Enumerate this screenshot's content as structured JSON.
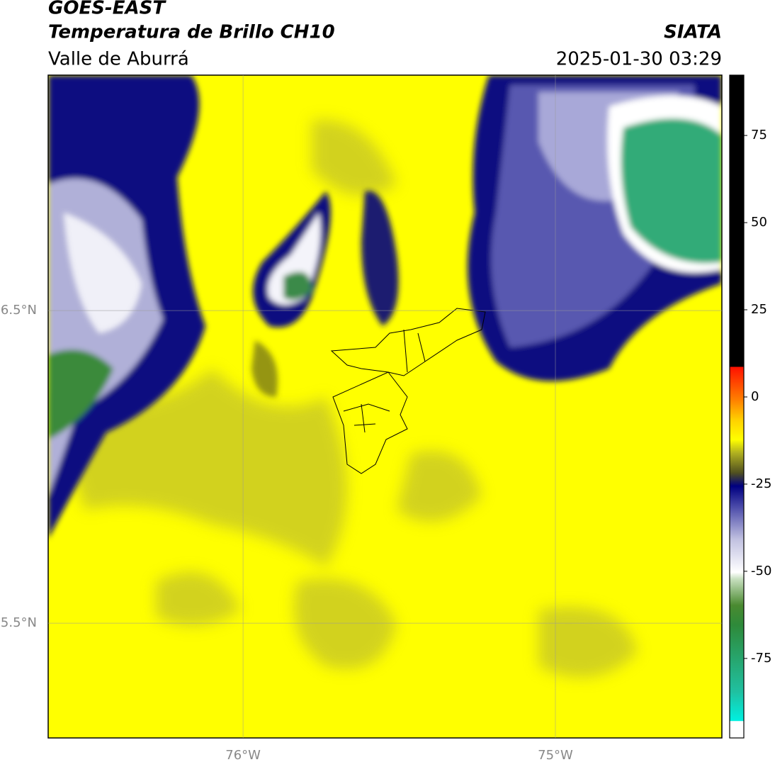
{
  "header": {
    "title": "GOES-EAST",
    "subtitle": "Temperatura de Brillo CH10",
    "region": "Valle de Aburrá",
    "source": "SIATA",
    "timestamp": "2025-01-30 03:29"
  },
  "map": {
    "xlim": [
      -76.624,
      -74.467
    ],
    "ylim": [
      5.133,
      7.253
    ],
    "xticks": [
      {
        "value": -76,
        "label": "76°W"
      },
      {
        "value": -75,
        "label": "75°W"
      }
    ],
    "yticks": [
      {
        "value": 6.5,
        "label": "6.5°N"
      },
      {
        "value": 5.5,
        "label": "5.5°N"
      }
    ],
    "grid": true
  },
  "colorbar": {
    "lim": [
      -97.8,
      92.3
    ],
    "ticks": [
      75,
      50,
      25,
      0,
      -25,
      -50,
      -75
    ]
  }
}
